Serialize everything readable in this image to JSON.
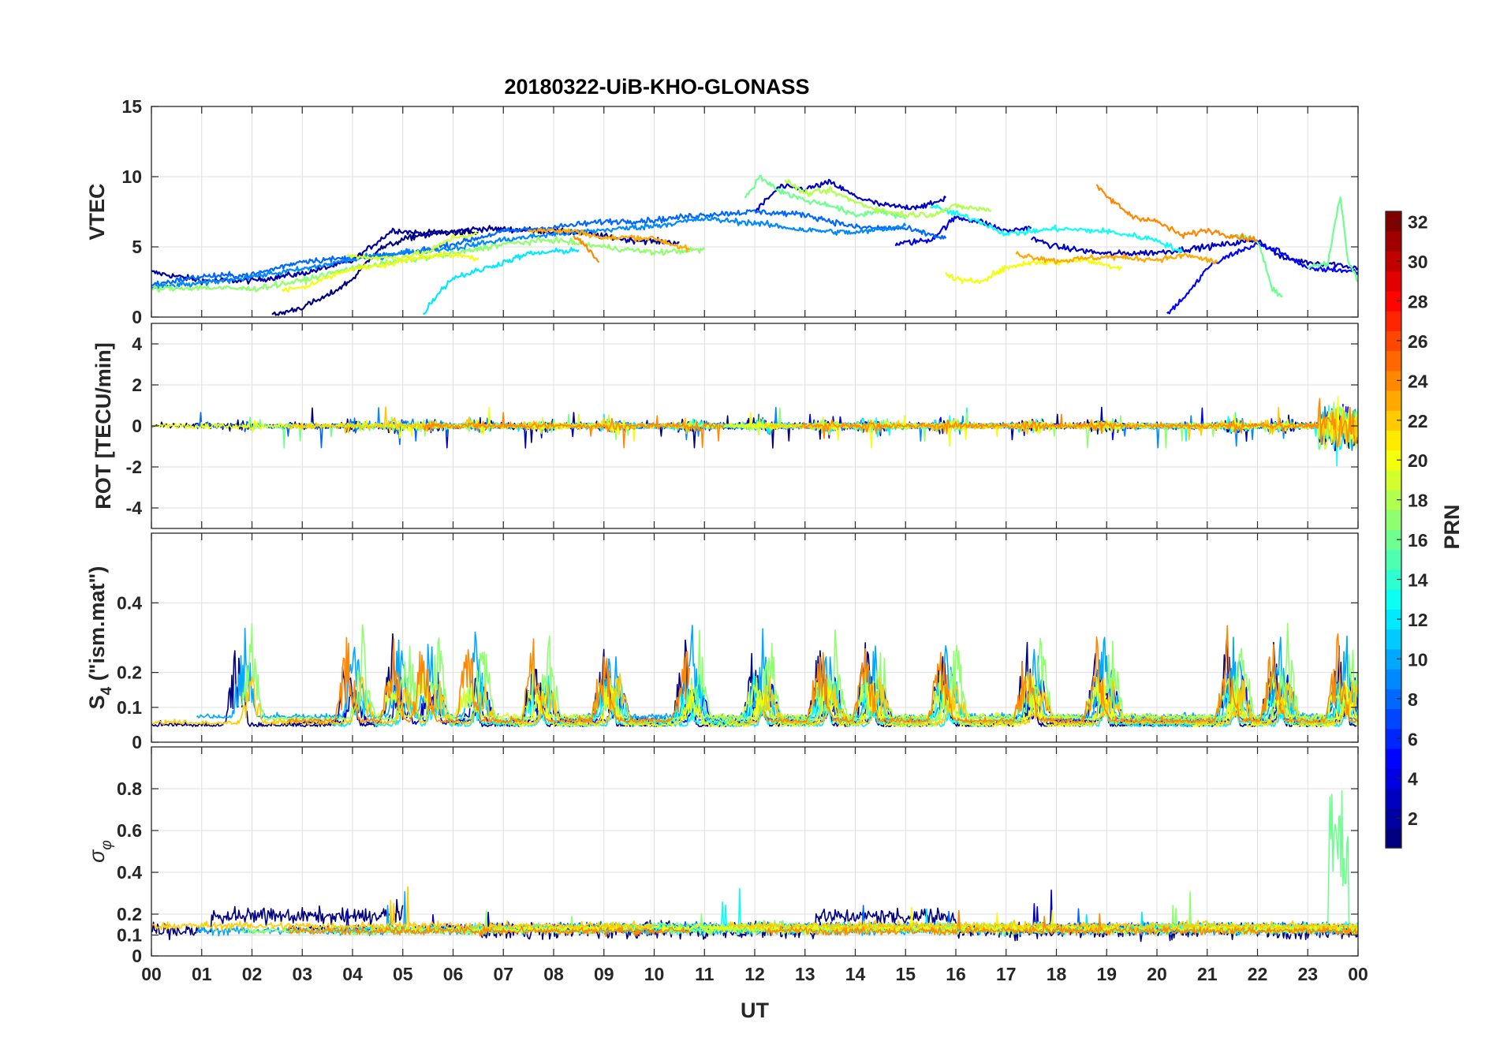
{
  "chart_data": {
    "type": "line",
    "title": "20180322-UiB-KHO-GLONASS",
    "xlabel": "UT",
    "x_unit": "hour",
    "xlim": [
      0,
      24
    ],
    "x_ticks": [
      "00",
      "01",
      "02",
      "03",
      "04",
      "05",
      "06",
      "07",
      "08",
      "09",
      "10",
      "11",
      "12",
      "13",
      "14",
      "15",
      "16",
      "17",
      "18",
      "19",
      "20",
      "21",
      "22",
      "23",
      "00"
    ],
    "color_scale": {
      "label": "PRN",
      "range": [
        1,
        32
      ],
      "ticks": [
        "2",
        "4",
        "6",
        "8",
        "10",
        "12",
        "14",
        "16",
        "18",
        "20",
        "22",
        "24",
        "26",
        "28",
        "30",
        "32"
      ],
      "colormap": "jet"
    },
    "panels": [
      {
        "name": "vtec",
        "ylabel": "VTEC",
        "ylim": [
          0,
          15
        ],
        "y_ticks": [
          "0",
          "5",
          "10",
          "15"
        ],
        "series": [
          {
            "prn": 2,
            "points": [
              [
                0,
                3.2
              ],
              [
                1,
                2.6
              ],
              [
                2,
                2.6
              ],
              [
                3,
                3.1
              ],
              [
                4,
                4.0
              ],
              [
                4.8,
                6.2
              ],
              [
                5.5,
                5.9
              ],
              [
                6.5,
                6.3
              ],
              [
                7.5,
                6.2
              ],
              [
                8.5,
                6.0
              ],
              [
                9.5,
                5.5
              ],
              [
                10.5,
                5.3
              ]
            ]
          },
          {
            "prn": 1,
            "points": [
              [
                2.4,
                0.1
              ],
              [
                3,
                0.7
              ],
              [
                3.5,
                1.5
              ],
              [
                4,
                2.7
              ],
              [
                4.5,
                4.8
              ],
              [
                5,
                5.5
              ],
              [
                5.5,
                6.0
              ],
              [
                6.5,
                6.0
              ]
            ]
          },
          {
            "prn": 3,
            "points": [
              [
                12,
                7.5
              ],
              [
                12.5,
                9.3
              ],
              [
                13,
                9.1
              ],
              [
                13.5,
                9.6
              ],
              [
                14,
                8.6
              ],
              [
                14.5,
                8.0
              ],
              [
                15,
                7.8
              ],
              [
                15.5,
                8.0
              ],
              [
                15.8,
                8.5
              ]
            ]
          },
          {
            "prn": 4,
            "points": [
              [
                14.8,
                5.2
              ],
              [
                15.5,
                5.5
              ],
              [
                16,
                7.1
              ],
              [
                16.5,
                6.8
              ],
              [
                17,
                6.1
              ],
              [
                17.5,
                6.4
              ]
            ]
          },
          {
            "prn": 3,
            "points": [
              [
                17.5,
                5.6
              ],
              [
                18,
                5.0
              ],
              [
                19,
                4.5
              ],
              [
                20,
                4.6
              ],
              [
                21,
                5.0
              ],
              [
                22,
                5.5
              ],
              [
                22.5,
                4.2
              ],
              [
                23,
                3.9
              ],
              [
                23.5,
                3.8
              ],
              [
                24,
                3.5
              ]
            ]
          },
          {
            "prn": 5,
            "points": [
              [
                20.2,
                0.2
              ],
              [
                20.7,
                2.0
              ],
              [
                21,
                3.5
              ],
              [
                21.5,
                4.5
              ],
              [
                22,
                5.2
              ],
              [
                22.5,
                4.6
              ],
              [
                23,
                3.4
              ],
              [
                23.5,
                3.4
              ],
              [
                24,
                3.2
              ]
            ]
          },
          {
            "prn": 8,
            "points": [
              [
                0,
                2.3
              ],
              [
                1,
                2.9
              ],
              [
                2,
                3.0
              ],
              [
                3,
                4.0
              ],
              [
                4,
                4.2
              ],
              [
                5,
                4.5
              ],
              [
                6,
                5.2
              ],
              [
                7,
                6.1
              ],
              [
                8,
                6.4
              ],
              [
                9,
                6.8
              ],
              [
                10,
                6.9
              ],
              [
                11,
                7.3
              ],
              [
                12,
                7.5
              ],
              [
                13,
                7.3
              ],
              [
                14,
                6.4
              ],
              [
                15,
                6.3
              ],
              [
                15.8,
                5.6
              ]
            ]
          },
          {
            "prn": 9,
            "points": [
              [
                0,
                2.1
              ],
              [
                1,
                2.4
              ],
              [
                2,
                2.9
              ],
              [
                3,
                3.4
              ],
              [
                4,
                4.1
              ],
              [
                5,
                4.6
              ],
              [
                6,
                4.9
              ],
              [
                7,
                5.5
              ],
              [
                8,
                5.9
              ],
              [
                9,
                6.2
              ],
              [
                10,
                6.5
              ],
              [
                11,
                7.0
              ],
              [
                12,
                6.7
              ],
              [
                13,
                6.2
              ],
              [
                14,
                6.0
              ],
              [
                15,
                6.5
              ]
            ]
          },
          {
            "prn": 12,
            "points": [
              [
                5.4,
                0.2
              ],
              [
                5.7,
                1.7
              ],
              [
                6.0,
                2.8
              ],
              [
                6.5,
                3.3
              ],
              [
                7.5,
                4.5
              ],
              [
                8.5,
                4.8
              ]
            ]
          },
          {
            "prn": 13,
            "points": [
              [
                15.5,
                7.9
              ],
              [
                16.5,
                6.8
              ],
              [
                17,
                5.9
              ],
              [
                18,
                6.3
              ],
              [
                19,
                6.1
              ],
              [
                20,
                5.5
              ],
              [
                20.5,
                4.6
              ]
            ]
          },
          {
            "prn": 16,
            "points": [
              [
                11.8,
                8.4
              ],
              [
                12.1,
                10.0
              ],
              [
                12.5,
                9.0
              ],
              [
                13,
                8.3
              ],
              [
                13.5,
                8.0
              ],
              [
                14,
                7.2
              ],
              [
                14.5,
                7.6
              ],
              [
                15,
                7.0
              ]
            ]
          },
          {
            "prn": 17,
            "points": [
              [
                0,
                2.0
              ],
              [
                1,
                2.1
              ],
              [
                2,
                2.0
              ],
              [
                3,
                2.6
              ],
              [
                4,
                3.5
              ],
              [
                5,
                4.0
              ],
              [
                6,
                4.5
              ],
              [
                7,
                5.2
              ],
              [
                8,
                5.5
              ],
              [
                9,
                5.0
              ],
              [
                10,
                4.6
              ],
              [
                11,
                4.8
              ]
            ]
          },
          {
            "prn": 16,
            "points": [
              [
                21.5,
                5.8
              ],
              [
                22,
                5.5
              ],
              [
                22.3,
                2.0
              ],
              [
                22.5,
                1.5
              ]
            ]
          },
          {
            "prn": 16,
            "points": [
              [
                23,
                3.5
              ],
              [
                23.4,
                3.9
              ],
              [
                23.65,
                8.7
              ],
              [
                23.8,
                4.0
              ],
              [
                24,
                2.5
              ]
            ]
          },
          {
            "prn": 18,
            "points": [
              [
                12.6,
                9.8
              ],
              [
                13.0,
                8.8
              ],
              [
                13.5,
                9.0
              ],
              [
                14,
                8.2
              ],
              [
                14.5,
                7.6
              ],
              [
                15,
                7.3
              ],
              [
                15.5,
                7.3
              ],
              [
                16,
                7.9
              ],
              [
                16.7,
                7.6
              ]
            ]
          },
          {
            "prn": 19,
            "points": [
              [
                3.9,
                4.4
              ],
              [
                4.5,
                4.2
              ],
              [
                5,
                4.3
              ],
              [
                5.5,
                4.6
              ],
              [
                6,
                5.7
              ],
              [
                6.5,
                5.9
              ]
            ]
          },
          {
            "prn": 20,
            "points": [
              [
                2.6,
                1.9
              ],
              [
                3,
                2.1
              ],
              [
                3.5,
                2.8
              ],
              [
                4,
                3.5
              ],
              [
                4.5,
                3.6
              ],
              [
                5,
                4.0
              ],
              [
                5.5,
                4.4
              ],
              [
                6,
                4.4
              ],
              [
                6.5,
                4.2
              ]
            ]
          },
          {
            "prn": 20,
            "points": [
              [
                15.8,
                3.0
              ],
              [
                16.2,
                2.5
              ],
              [
                16.5,
                2.6
              ],
              [
                17,
                3.5
              ],
              [
                17.5,
                3.9
              ],
              [
                18,
                3.9
              ],
              [
                18.5,
                4.1
              ],
              [
                19,
                3.7
              ],
              [
                19.3,
                3.5
              ]
            ]
          },
          {
            "prn": 23,
            "points": [
              [
                7.5,
                6.2
              ],
              [
                8.5,
                6.1
              ],
              [
                9.0,
                5.6
              ],
              [
                9.5,
                5.7
              ],
              [
                10.0,
                5.6
              ],
              [
                10.7,
                4.8
              ]
            ]
          },
          {
            "prn": 24,
            "points": [
              [
                18.8,
                9.3
              ],
              [
                19,
                8.6
              ],
              [
                19.5,
                7.2
              ],
              [
                20,
                6.8
              ],
              [
                20.5,
                5.8
              ],
              [
                21,
                6.2
              ],
              [
                21.5,
                5.8
              ],
              [
                22,
                5.5
              ]
            ]
          },
          {
            "prn": 24,
            "points": [
              [
                8.4,
                5.8
              ],
              [
                8.6,
                5.2
              ],
              [
                8.9,
                3.9
              ]
            ]
          },
          {
            "prn": 23,
            "points": [
              [
                17.2,
                4.5
              ],
              [
                18,
                4.0
              ],
              [
                19,
                4.3
              ],
              [
                20,
                4.1
              ],
              [
                20.6,
                4.4
              ],
              [
                21.2,
                3.9
              ]
            ]
          }
        ]
      },
      {
        "name": "rot",
        "ylabel": "ROT [TECU/min]",
        "ylim": [
          -5,
          5
        ],
        "y_ticks": [
          "-4",
          "-2",
          "0",
          "2",
          "4"
        ]
      },
      {
        "name": "s4",
        "ylabel": "S4 (\"ism.mat\")",
        "ylabel_main": "S",
        "ylabel_sub": "4",
        "ylabel_rest": " (\"ism.mat\")",
        "ylim": [
          0,
          0.6
        ],
        "y_ticks": [
          "0",
          "0.1",
          "0.2",
          "0.4"
        ]
      },
      {
        "name": "sigma-phi",
        "ylabel": "σφ",
        "ylabel_main": "σ",
        "ylabel_sub": "φ",
        "ylim": [
          0,
          1
        ],
        "y_ticks": [
          "0",
          "0.1",
          "0.2",
          "0.4",
          "0.6",
          "0.8"
        ]
      }
    ]
  }
}
